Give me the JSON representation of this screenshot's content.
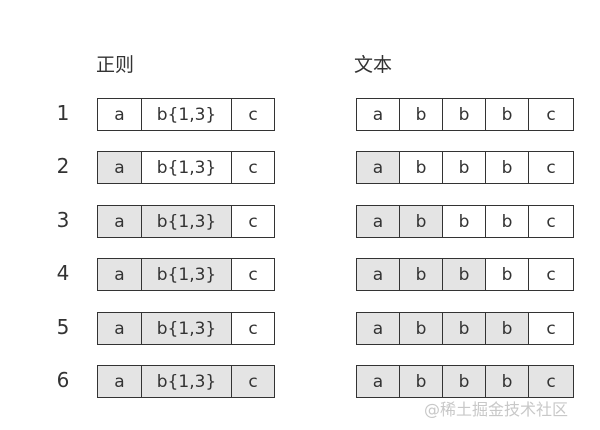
{
  "headers": {
    "regex": "正则",
    "text": "文本"
  },
  "regex_tokens": [
    "a",
    "b{1,3}",
    "c"
  ],
  "text_chars": [
    "a",
    "b",
    "b",
    "b",
    "c"
  ],
  "highlight_color": "#e4e4e4",
  "steps": [
    {
      "label": "1",
      "regex_matched": 0,
      "text_matched": 0
    },
    {
      "label": "2",
      "regex_matched": 1,
      "text_matched": 1
    },
    {
      "label": "3",
      "regex_matched": 2,
      "text_matched": 2
    },
    {
      "label": "4",
      "regex_matched": 2,
      "text_matched": 3
    },
    {
      "label": "5",
      "regex_matched": 2,
      "text_matched": 4
    },
    {
      "label": "6",
      "regex_matched": 3,
      "text_matched": 5
    }
  ],
  "watermark": "@稀土掘金技术社区"
}
